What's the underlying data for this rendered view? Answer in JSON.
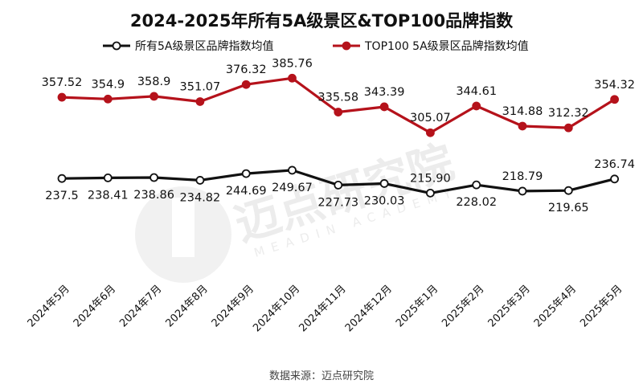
{
  "chart_data": {
    "type": "line",
    "title": "2024-2025年所有5A级景区&TOP100品牌指数",
    "categories": [
      "2024年5月",
      "2024年6月",
      "2024年7月",
      "2024年8月",
      "2024年9月",
      "2024年10月",
      "2024年11月",
      "2024年12月",
      "2025年1月",
      "2025年2月",
      "2025年3月",
      "2025年4月",
      "2025年5月"
    ],
    "series": [
      {
        "name": "所有5A级景区品牌指数均值",
        "color": "#111111",
        "marker_fill": "#ffffff",
        "values": [
          237.5,
          238.41,
          238.86,
          234.82,
          244.69,
          249.67,
          227.73,
          230.03,
          215.9,
          228.02,
          218.79,
          219.65,
          236.74
        ],
        "labels": [
          "237.5",
          "238.41",
          "238.86",
          "234.82",
          "244.69",
          "249.67",
          "227.73",
          "230.03",
          "215.90",
          "228.02",
          "218.79",
          "219.65",
          "236.74"
        ],
        "label_pos": [
          "below",
          "below",
          "below",
          "below",
          "below",
          "below",
          "below",
          "below",
          "above",
          "below",
          "above",
          "below",
          "above"
        ]
      },
      {
        "name": "TOP100 5A级景区品牌指数均值",
        "color": "#b5121b",
        "marker_fill": "#b5121b",
        "values": [
          357.52,
          354.9,
          358.9,
          351.07,
          376.32,
          385.76,
          335.58,
          343.39,
          305.07,
          344.61,
          314.88,
          312.32,
          354.32
        ],
        "labels": [
          "357.52",
          "354.9",
          "358.9",
          "351.07",
          "376.32",
          "385.76",
          "335.58",
          "343.39",
          "305.07",
          "344.61",
          "314.88",
          "312.32",
          "354.32"
        ],
        "label_pos": [
          "above",
          "above",
          "above",
          "above",
          "above",
          "above",
          "above",
          "above",
          "above",
          "above",
          "above",
          "above",
          "above"
        ]
      }
    ],
    "ylim": [
      100,
      430
    ],
    "grid": false,
    "legend": "top-center",
    "source": "数据来源：迈点研究院"
  },
  "watermark": {
    "cn": "迈点研究院",
    "en": "MEADIN ACADEMY"
  }
}
